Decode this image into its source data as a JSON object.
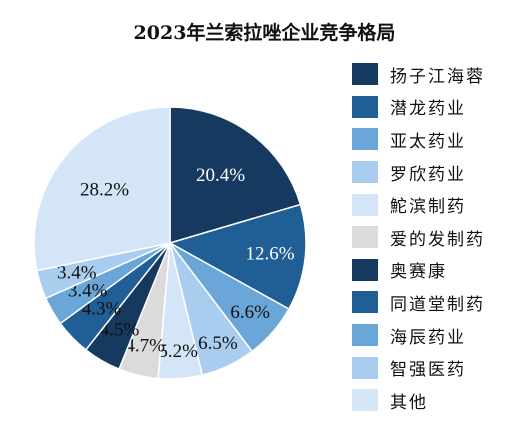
{
  "chart_data": {
    "type": "pie",
    "title": "2023年兰索拉唑企业竞争格局",
    "legend_position": "right",
    "slices": [
      {
        "label": "扬子江海蓉",
        "value": 20.4,
        "display": "20.4%",
        "color": "#163a5f",
        "text_color": "#ffffff"
      },
      {
        "label": "潜龙药业",
        "value": 12.6,
        "display": "12.6%",
        "color": "#1f5f96",
        "text_color": "#ffffff"
      },
      {
        "label": "亚太药业",
        "value": 6.6,
        "display": "6.6%",
        "color": "#6aa6d8",
        "text_color": "#111111"
      },
      {
        "label": "罗欣药业",
        "value": 6.5,
        "display": "6.5%",
        "color": "#a9cdee",
        "text_color": "#111111"
      },
      {
        "label": "鮀滨制药",
        "value": 5.2,
        "display": "5.2%",
        "color": "#d3e5f6",
        "text_color": "#111111"
      },
      {
        "label": "爱的发制药",
        "value": 4.7,
        "display": "4.7%",
        "color": "#dbdbdb",
        "text_color": "#111111"
      },
      {
        "label": "奥赛康",
        "value": 4.5,
        "display": "4.5%",
        "color": "#163a5f",
        "text_color": "#111111"
      },
      {
        "label": "同道堂制药",
        "value": 4.3,
        "display": "4.3%",
        "color": "#1f5f96",
        "text_color": "#111111"
      },
      {
        "label": "海辰药业",
        "value": 3.4,
        "display": "3.4%",
        "color": "#6aa6d8",
        "text_color": "#111111"
      },
      {
        "label": "智强医药",
        "value": 3.4,
        "display": "3.4%",
        "color": "#a9cdee",
        "text_color": "#111111"
      },
      {
        "label": "其他",
        "value": 28.2,
        "display": "28.2%",
        "color": "#d3e5f6",
        "text_color": "#111111"
      }
    ]
  }
}
